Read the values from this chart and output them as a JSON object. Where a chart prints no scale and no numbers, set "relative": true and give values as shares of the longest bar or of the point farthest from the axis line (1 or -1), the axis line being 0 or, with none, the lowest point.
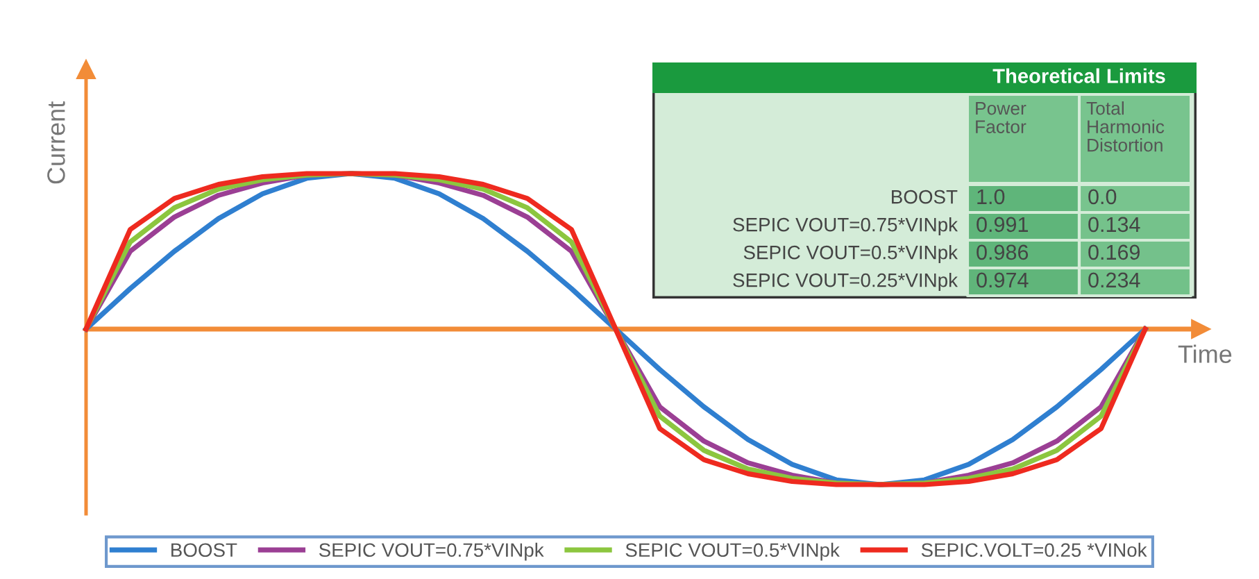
{
  "chart_data": [
    {
      "type": "line",
      "relative": true,
      "xlabel": "Time",
      "ylabel": "Current",
      "legend": "bottom",
      "marker": "none",
      "line_style": "solid",
      "ref_lines": [
        {
          "axis": "y",
          "value": 0,
          "color": "#f28c38"
        }
      ],
      "categories": [
        null,
        null,
        null,
        null,
        null,
        null,
        null,
        null,
        null,
        null,
        null,
        null,
        null,
        null,
        null,
        null,
        null,
        null,
        null,
        null,
        null,
        null,
        null,
        null,
        null
      ],
      "series": [
        {
          "name": "BOOST",
          "color": "#2f7fd0",
          "values": [
            0,
            0.26,
            0.5,
            0.71,
            0.87,
            0.97,
            1,
            0.97,
            0.87,
            0.71,
            0.5,
            0.26,
            0,
            -0.26,
            -0.5,
            -0.71,
            -0.87,
            -0.97,
            -1,
            -0.97,
            -0.87,
            -0.71,
            -0.5,
            -0.26,
            0
          ]
        },
        {
          "name": "SEPIC VOUT=0.75*VINpk",
          "color": "#9b3f94",
          "values": [
            0,
            0.5,
            0.72,
            0.86,
            0.94,
            0.99,
            1,
            0.99,
            0.94,
            0.86,
            0.72,
            0.5,
            0,
            -0.5,
            -0.72,
            -0.86,
            -0.94,
            -0.99,
            -1,
            -0.99,
            -0.94,
            -0.86,
            -0.72,
            -0.5,
            0
          ]
        },
        {
          "name": "SEPIC VOUT=0.5*VINpk",
          "color": "#8cc63f",
          "values": [
            0,
            0.56,
            0.78,
            0.9,
            0.96,
            0.99,
            1,
            0.99,
            0.96,
            0.9,
            0.78,
            0.56,
            0,
            -0.56,
            -0.78,
            -0.9,
            -0.96,
            -0.99,
            -1,
            -0.99,
            -0.96,
            -0.9,
            -0.78,
            -0.56,
            0
          ]
        },
        {
          "name": "SEPIC.VOLT=0.25 *VINok",
          "color": "#ee2a1f",
          "values": [
            0,
            0.64,
            0.84,
            0.93,
            0.98,
            1,
            1,
            1,
            0.98,
            0.93,
            0.84,
            0.64,
            0,
            -0.64,
            -0.84,
            -0.93,
            -0.98,
            -1,
            -1,
            -1,
            -0.98,
            -0.93,
            -0.84,
            -0.64,
            0
          ]
        }
      ]
    },
    {
      "type": "heatmap",
      "title": "Theoretical Limits",
      "data_labels": true,
      "colors": [
        "#78c48e",
        "#5fb57a"
      ],
      "categories": [
        "Power\nFactor",
        "Total\nHarmonic\nDistortion"
      ],
      "y_categories": [
        "BOOST",
        "SEPIC VOUT=0.75*VINpk",
        "SEPIC VOUT=0.5*VINpk",
        "SEPIC VOUT=0.25*VINpk"
      ],
      "cells": [
        [
          1.0,
          0.0
        ],
        [
          0.991,
          0.134
        ],
        [
          0.986,
          0.169
        ],
        [
          0.974,
          0.234
        ]
      ],
      "cell_labels": [
        [
          "1.0",
          "0.0"
        ],
        [
          "0.991",
          "0.134"
        ],
        [
          "0.986",
          "0.169"
        ],
        [
          "0.974",
          "0.234"
        ]
      ]
    }
  ]
}
